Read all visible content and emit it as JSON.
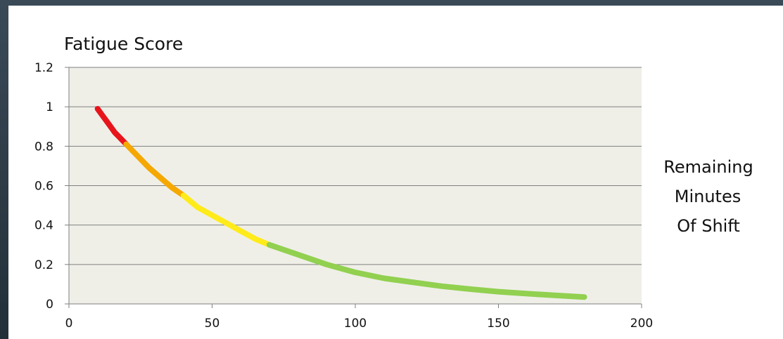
{
  "chart_data": {
    "type": "line",
    "ylabel": "Fatigue Score",
    "xlabel_lines": [
      "Remaining",
      "Minutes",
      "Of Shift"
    ],
    "xlim": [
      0,
      200
    ],
    "ylim": [
      0,
      1.2
    ],
    "x_ticks": [
      0,
      50,
      100,
      150,
      200
    ],
    "y_ticks": [
      0,
      0.2,
      0.4,
      0.6,
      0.8,
      1,
      1.2
    ],
    "x_tick_labels": [
      "0",
      "50",
      "100",
      "150",
      "200"
    ],
    "y_tick_labels": [
      "0",
      "0.2",
      "0.4",
      "0.6",
      "0.8",
      "1",
      "1.2"
    ],
    "grid": true,
    "plot_background": "#efefe8",
    "series": [
      {
        "color": "#e8141c",
        "x": [
          10,
          12,
          14,
          16,
          18,
          20
        ],
        "y": [
          0.99,
          0.95,
          0.91,
          0.87,
          0.84,
          0.81
        ]
      },
      {
        "color": "#f5a800",
        "x": [
          20,
          24,
          28,
          32,
          36,
          40
        ],
        "y": [
          0.81,
          0.75,
          0.69,
          0.64,
          0.59,
          0.55
        ]
      },
      {
        "color": "#ffeb1a",
        "x": [
          40,
          45,
          50,
          55,
          60,
          65,
          70
        ],
        "y": [
          0.55,
          0.49,
          0.45,
          0.41,
          0.37,
          0.33,
          0.3
        ]
      },
      {
        "color": "#92d050",
        "x": [
          70,
          80,
          90,
          100,
          110,
          120,
          130,
          140,
          150,
          160,
          170,
          180
        ],
        "y": [
          0.3,
          0.25,
          0.2,
          0.16,
          0.13,
          0.11,
          0.09,
          0.075,
          0.062,
          0.052,
          0.043,
          0.035
        ]
      }
    ]
  }
}
